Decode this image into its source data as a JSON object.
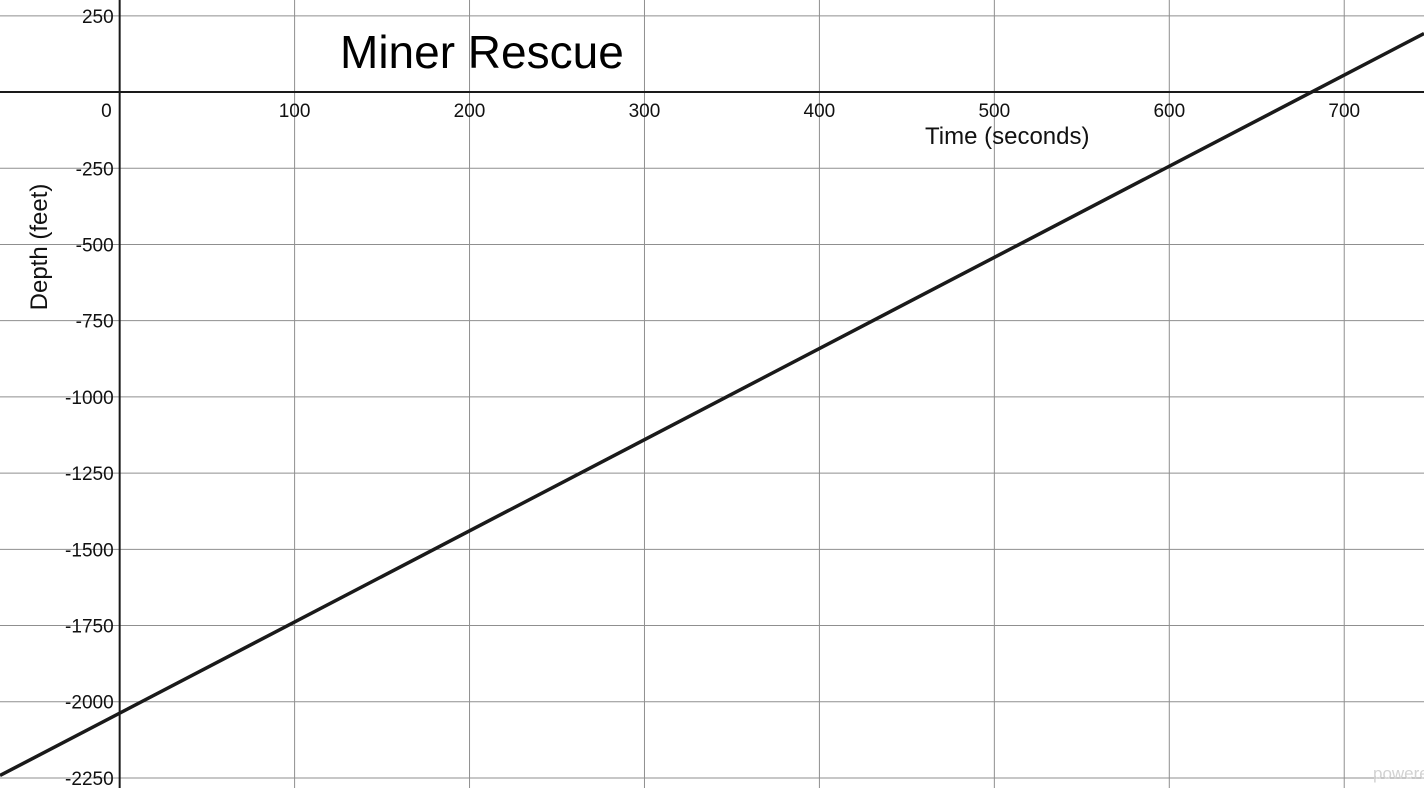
{
  "watermark": "powere",
  "chart_data": {
    "type": "line",
    "title": "Miner Rescue",
    "xlabel": "Time (seconds)",
    "ylabel": "Depth (feet)",
    "xlim": [
      -68.4,
      745.6
    ],
    "ylim": [
      -2283,
      302
    ],
    "grid": true,
    "x_ticks": [
      100,
      200,
      300,
      400,
      500,
      600,
      700
    ],
    "y_ticks": [
      250,
      -250,
      -500,
      -750,
      -1000,
      -1250,
      -1500,
      -1750,
      -2000,
      -2250
    ],
    "origin_label": "0",
    "series": [
      {
        "x": [
          -68.4,
          745.6
        ],
        "y": [
          -2242,
          192
        ]
      }
    ]
  }
}
